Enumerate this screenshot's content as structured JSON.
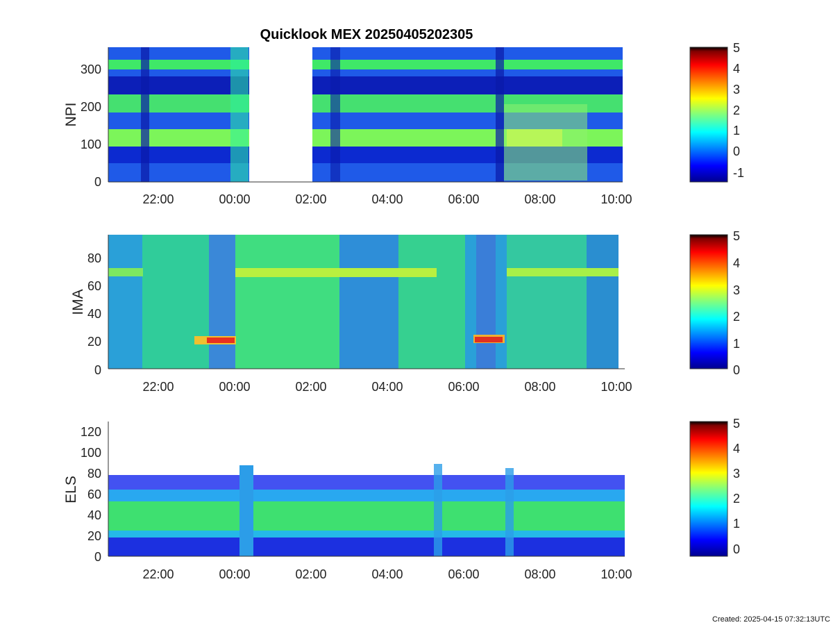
{
  "figure": {
    "title": "Quicklook MEX 20250405202305",
    "footer": "Created: 2025-04-15 07:32:13UTC"
  },
  "chart_data": [
    {
      "type": "heatmap",
      "ylabel": "NPI",
      "x_ticks": [
        "22:00",
        "00:00",
        "02:00",
        "04:00",
        "06:00",
        "08:00",
        "10:00"
      ],
      "y_ticks": [
        0,
        100,
        200,
        300
      ],
      "ylim": [
        0,
        360
      ],
      "colorbar_ticks": [
        -1,
        0,
        1,
        2,
        3,
        4,
        5
      ],
      "colorbar_range": [
        -1.5,
        5
      ],
      "data_gap": [
        "00:23",
        "02:00"
      ]
    },
    {
      "type": "heatmap",
      "ylabel": "IMA",
      "x_ticks": [
        "22:00",
        "00:00",
        "02:00",
        "04:00",
        "06:00",
        "08:00",
        "10:00"
      ],
      "y_ticks": [
        0,
        20,
        40,
        60,
        80
      ],
      "ylim": [
        0,
        96
      ],
      "colorbar_ticks": [
        0,
        1,
        2,
        3,
        4,
        5
      ],
      "colorbar_range": [
        0,
        5
      ]
    },
    {
      "type": "heatmap",
      "ylabel": "ELS",
      "x_ticks": [
        "22:00",
        "00:00",
        "02:00",
        "04:00",
        "06:00",
        "08:00",
        "10:00"
      ],
      "y_ticks": [
        0,
        20,
        40,
        60,
        80,
        100,
        120
      ],
      "ylim": [
        0,
        128
      ],
      "colorbar_ticks": [
        0,
        1,
        2,
        3,
        4,
        5
      ],
      "colorbar_range": [
        -0.3,
        5
      ]
    }
  ]
}
